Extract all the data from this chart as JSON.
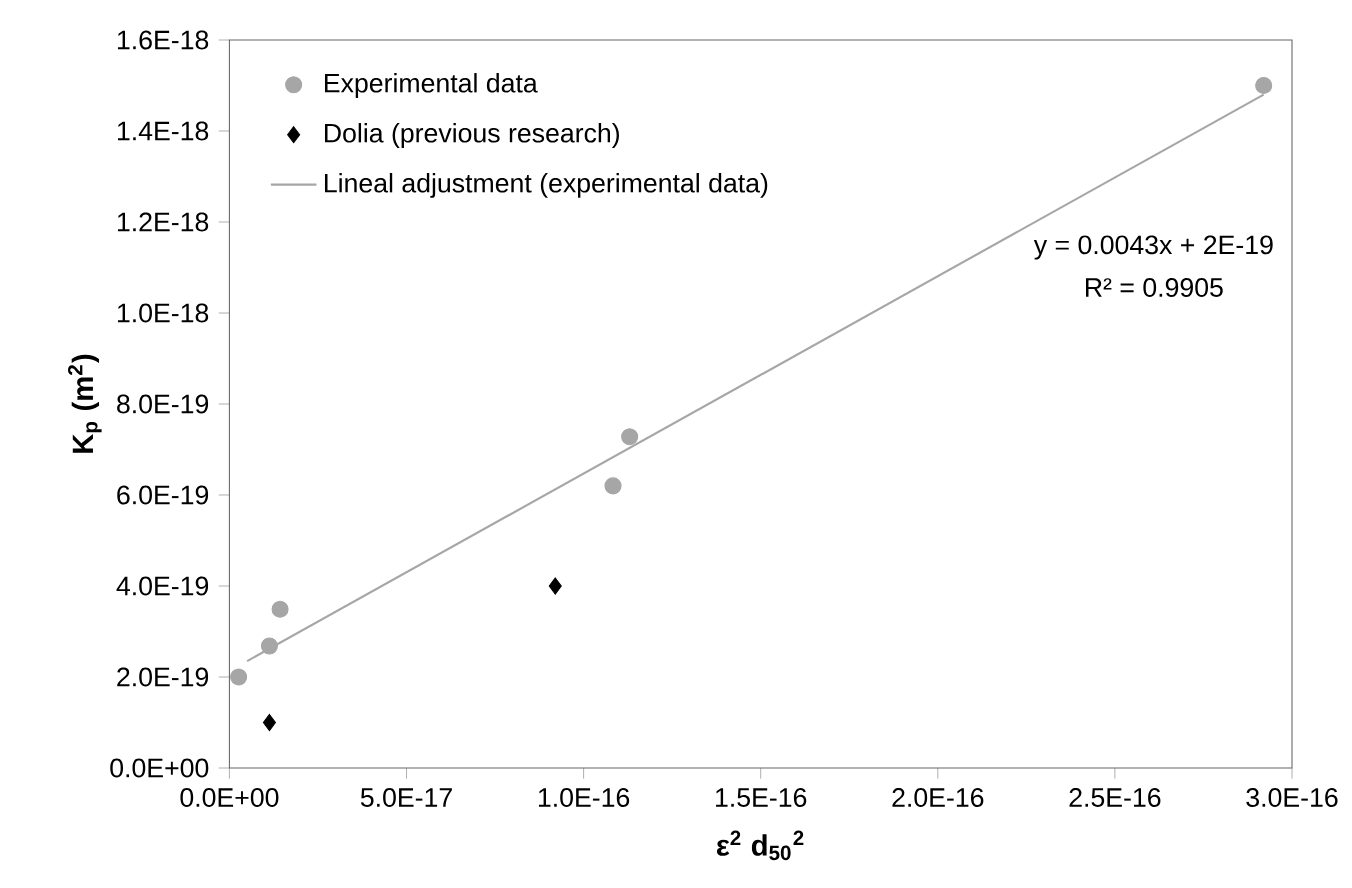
{
  "chart_data": {
    "type": "scatter",
    "xlabel": "**ε$^{2}$ d$_{50}$$^{2}$**",
    "ylabel": "**K$_{p}$ (m$^{2}$)**",
    "series": [
      {
        "name": "Experimental data",
        "color": "#a6a6a6",
        "marker": "circle",
        "x": [
          2.6e-18,
          1.13e-17,
          1.43e-17,
          1.083e-16,
          1.13e-16,
          2.92e-16
        ],
        "values": [
          2e-19,
          2.68e-19,
          3.49e-19,
          6.2e-19,
          7.28e-19,
          1.5e-18
        ]
      },
      {
        "name": "Dolia (previous research)",
        "color": "#000000",
        "marker": "diamond",
        "x": [
          1.13e-17,
          9.2e-17
        ],
        "values": [
          1e-19,
          4e-19
        ]
      },
      {
        "name": "Lineal adjustment (experimental data)",
        "type": "line",
        "color": "#a6a6a6",
        "marker": "none",
        "line_style": "solid",
        "x": [
          5e-18,
          2.92e-16
        ],
        "values": [
          2.35e-19,
          1.48e-18
        ]
      }
    ],
    "annotations": [
      "y = 0.0043x + 2E-19",
      "R² = 0.9905"
    ],
    "xlim": [
      0,
      3e-16
    ],
    "ylim": [
      0,
      1.6e-18
    ],
    "xticks": [
      {
        "value": 0,
        "label": "0.0E+00"
      },
      {
        "value": 5e-17,
        "label": "5.0E-17"
      },
      {
        "value": 1e-16,
        "label": "1.0E-16"
      },
      {
        "value": 1.5e-16,
        "label": "1.5E-16"
      },
      {
        "value": 2e-16,
        "label": "2.0E-16"
      },
      {
        "value": 2.5e-16,
        "label": "2.5E-16"
      },
      {
        "value": 3e-16,
        "label": "3.0E-16"
      }
    ],
    "yticks": [
      {
        "value": 0,
        "label": "0.0E+00"
      },
      {
        "value": 2e-19,
        "label": "2.0E-19"
      },
      {
        "value": 4e-19,
        "label": "4.0E-19"
      },
      {
        "value": 6e-19,
        "label": "6.0E-19"
      },
      {
        "value": 8e-19,
        "label": "8.0E-19"
      },
      {
        "value": 1e-18,
        "label": "1.0E-18"
      },
      {
        "value": 1.2e-18,
        "label": "1.2E-18"
      },
      {
        "value": 1.4e-18,
        "label": "1.4E-18"
      },
      {
        "value": 1.6e-18,
        "label": "1.6E-18"
      }
    ],
    "grid": false,
    "legend": "top left"
  }
}
